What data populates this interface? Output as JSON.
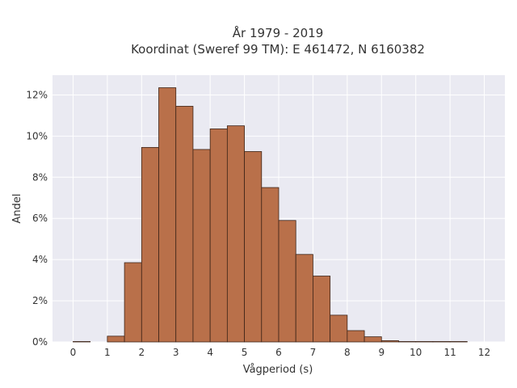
{
  "chart_data": {
    "type": "bar",
    "title": "År 1979 - 2019",
    "subtitle": "Koordinat (Sweref 99 TM): E 461472, N 6160382",
    "xlabel": "Vågperiod (s)",
    "ylabel": "Andel",
    "xlim": [
      -0.6,
      12.6
    ],
    "ylim": [
      0,
      12.96
    ],
    "x_ticks": [
      0,
      1,
      2,
      3,
      4,
      5,
      6,
      7,
      8,
      9,
      10,
      11,
      12
    ],
    "x_tick_labels": [
      "0",
      "1",
      "2",
      "3",
      "4",
      "5",
      "6",
      "7",
      "8",
      "9",
      "10",
      "11",
      "12"
    ],
    "y_ticks": [
      0,
      2,
      4,
      6,
      8,
      10,
      12
    ],
    "y_tick_labels": [
      "0%",
      "2%",
      "4%",
      "6%",
      "8%",
      "10%",
      "12%"
    ],
    "bin_width": 0.5,
    "bins": [
      {
        "start": 0.0,
        "value": 0.02
      },
      {
        "start": 0.5,
        "value": 0.0
      },
      {
        "start": 1.0,
        "value": 0.28
      },
      {
        "start": 1.5,
        "value": 3.85
      },
      {
        "start": 2.0,
        "value": 9.45
      },
      {
        "start": 2.5,
        "value": 12.35
      },
      {
        "start": 3.0,
        "value": 11.45
      },
      {
        "start": 3.5,
        "value": 9.35
      },
      {
        "start": 4.0,
        "value": 10.35
      },
      {
        "start": 4.5,
        "value": 10.5
      },
      {
        "start": 5.0,
        "value": 9.25
      },
      {
        "start": 5.5,
        "value": 7.5
      },
      {
        "start": 6.0,
        "value": 5.9
      },
      {
        "start": 6.5,
        "value": 4.25
      },
      {
        "start": 7.0,
        "value": 3.2
      },
      {
        "start": 7.5,
        "value": 1.3
      },
      {
        "start": 8.0,
        "value": 0.55
      },
      {
        "start": 8.5,
        "value": 0.25
      },
      {
        "start": 9.0,
        "value": 0.06
      },
      {
        "start": 9.5,
        "value": 0.02
      },
      {
        "start": 10.0,
        "value": 0.02
      },
      {
        "start": 10.5,
        "value": 0.02
      },
      {
        "start": 11.0,
        "value": 0.02
      }
    ],
    "grid": true,
    "bar_color": "#b9704a",
    "bar_edge_color": "#3d2418",
    "plot_background": "#eaeaf2"
  }
}
